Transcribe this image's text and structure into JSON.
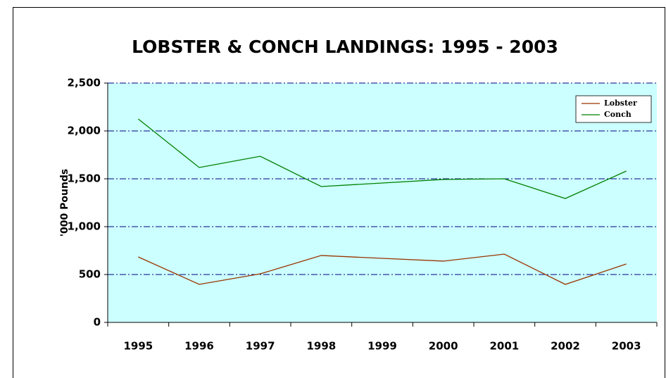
{
  "chart_data": {
    "type": "line",
    "title": "LOBSTER & CONCH LANDINGS: 1995 - 2003",
    "y_label": "'000 Pounds",
    "categories": [
      "1995",
      "1996",
      "1997",
      "1998",
      "1999",
      "2000",
      "2001",
      "2002",
      "2003"
    ],
    "series": [
      {
        "name": "Lobster",
        "color": "#993300",
        "values": [
          684,
          397,
          507,
          699,
          669,
          640,
          713,
          397,
          610
        ]
      },
      {
        "name": "Conch",
        "color": "#008000",
        "values": [
          2125,
          1618,
          1735,
          1419,
          1456,
          1493,
          1500,
          1294,
          1581
        ]
      }
    ],
    "ylim": [
      0,
      2500
    ],
    "yticks": [
      0,
      500,
      {
        "value": 1000,
        "label": "1,000"
      },
      {
        "value": 1500,
        "label": "1,500"
      },
      {
        "value": 2000,
        "label": "2,000"
      },
      {
        "value": 2500,
        "label": "2,500"
      }
    ],
    "grid": true,
    "legend": "upper right",
    "plot_background": "#ccffff"
  }
}
